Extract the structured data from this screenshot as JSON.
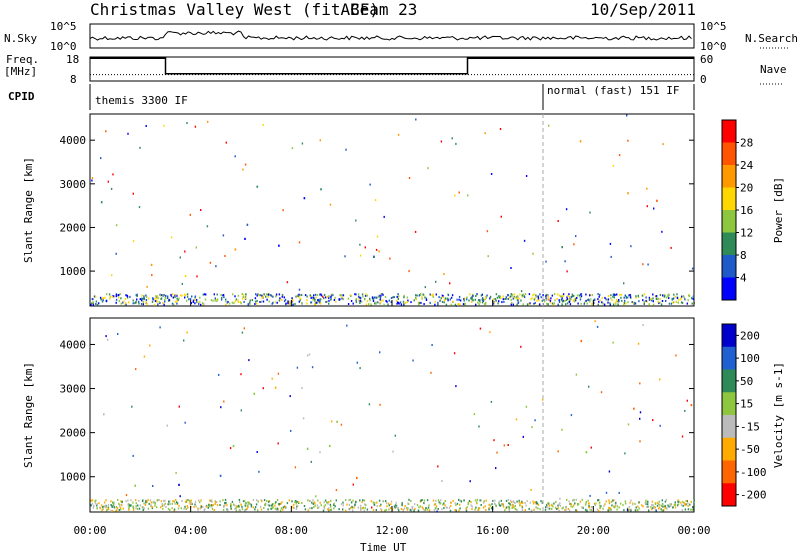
{
  "header": {
    "title": "Christmas Valley West (fitACF)",
    "beam": "Beam 23",
    "date": "10/Sep/2011"
  },
  "strip1": {
    "left_label": "N.Sky",
    "ytick_top": "10^5",
    "ytick_bottom": "10^0",
    "right_label": "N.Search",
    "rtick_top": "10^5",
    "rtick_bottom": "10^0"
  },
  "strip2": {
    "left_label_1": "Freq.",
    "left_label_2": "[MHz]",
    "ytick_top": "18",
    "ytick_bottom": "8",
    "right_label": "Nave",
    "rtick_top": "60",
    "rtick_bottom": "0",
    "freq_segments": [
      [
        0,
        1.2,
        17.5
      ],
      [
        1.2,
        3,
        17.5
      ],
      [
        3,
        15,
        11
      ],
      [
        15,
        18,
        17.5
      ],
      [
        18,
        24,
        17.5
      ]
    ],
    "nave_level": 16
  },
  "cpid": {
    "label": "CPID",
    "mode1": "themis 3300 IF",
    "mode2": "normal (fast) 151 IF",
    "switch_hour": 18
  },
  "xaxis": {
    "label": "Time UT",
    "ticks": [
      "00:00",
      "04:00",
      "08:00",
      "12:00",
      "16:00",
      "20:00",
      "00:00"
    ]
  },
  "chart_data": [
    {
      "type": "heatmap",
      "name": "Power",
      "ylabel": "Slant Range [km]",
      "yticks": [
        "1000",
        "2000",
        "3000",
        "4000"
      ],
      "ylim": [
        200,
        4600
      ],
      "xlim": [
        0,
        24
      ],
      "colorbar_label": "Power [dB]",
      "colorbar_ticks": [
        "4",
        "8",
        "12",
        "16",
        "20",
        "24",
        "28"
      ],
      "colors": [
        "#0000ff",
        "#1e5ac8",
        "#2e8b57",
        "#8ec63f",
        "#ffd700",
        "#ff9900",
        "#ff5500",
        "#ff0000"
      ],
      "features": [
        {
          "t0": 0,
          "t1": 1.5,
          "r0": 1700,
          "r1": 2800,
          "level": "low"
        },
        {
          "t0": 0.8,
          "t1": 2.5,
          "r0": 800,
          "r1": 1500,
          "level": "mid"
        },
        {
          "t0": 3.2,
          "t1": 6,
          "r0": 800,
          "r1": 1700,
          "level": "high"
        },
        {
          "t0": 5,
          "t1": 10,
          "r0": 1500,
          "r1": 3200,
          "level": "low"
        },
        {
          "t0": 10,
          "t1": 12,
          "r0": 900,
          "r1": 1400,
          "level": "low"
        },
        {
          "t0": 18.5,
          "t1": 24,
          "r0": 1500,
          "r1": 1800,
          "level": "low"
        },
        {
          "t0": 21,
          "t1": 24,
          "r0": 2000,
          "r1": 3000,
          "level": "high"
        },
        {
          "t0": 18.5,
          "t1": 20,
          "r0": 3500,
          "r1": 4300,
          "level": "high"
        }
      ]
    },
    {
      "type": "heatmap",
      "name": "Velocity",
      "ylabel": "Slant Range [km]",
      "yticks": [
        "1000",
        "2000",
        "3000",
        "4000"
      ],
      "ylim": [
        200,
        4600
      ],
      "xlim": [
        0,
        24
      ],
      "colorbar_label": "Velocity [m s-1]",
      "colorbar_ticks": [
        "200",
        "100",
        "50",
        "15",
        "-15",
        "-50",
        "-100",
        "-200"
      ],
      "colors": [
        "#0000cc",
        "#2060d0",
        "#2e8b57",
        "#8ec63f",
        "#bbbbbb",
        "#ffaa00",
        "#ff6600",
        "#ff0000"
      ],
      "features": [
        {
          "t0": 0,
          "t1": 1.5,
          "r0": 1700,
          "r1": 2800,
          "level": "gray"
        },
        {
          "t0": 0.8,
          "t1": 2.5,
          "r0": 800,
          "r1": 1500,
          "level": "green"
        },
        {
          "t0": 3.2,
          "t1": 6,
          "r0": 800,
          "r1": 1700,
          "level": "blue"
        },
        {
          "t0": 5,
          "t1": 10,
          "r0": 1500,
          "r1": 3200,
          "level": "gray"
        },
        {
          "t0": 10,
          "t1": 12,
          "r0": 900,
          "r1": 1400,
          "level": "orange"
        },
        {
          "t0": 18.5,
          "t1": 24,
          "r0": 1500,
          "r1": 1800,
          "level": "gray"
        },
        {
          "t0": 21,
          "t1": 24,
          "r0": 2000,
          "r1": 3000,
          "level": "red"
        },
        {
          "t0": 18.5,
          "t1": 20,
          "r0": 3500,
          "r1": 4300,
          "level": "red"
        }
      ]
    }
  ]
}
